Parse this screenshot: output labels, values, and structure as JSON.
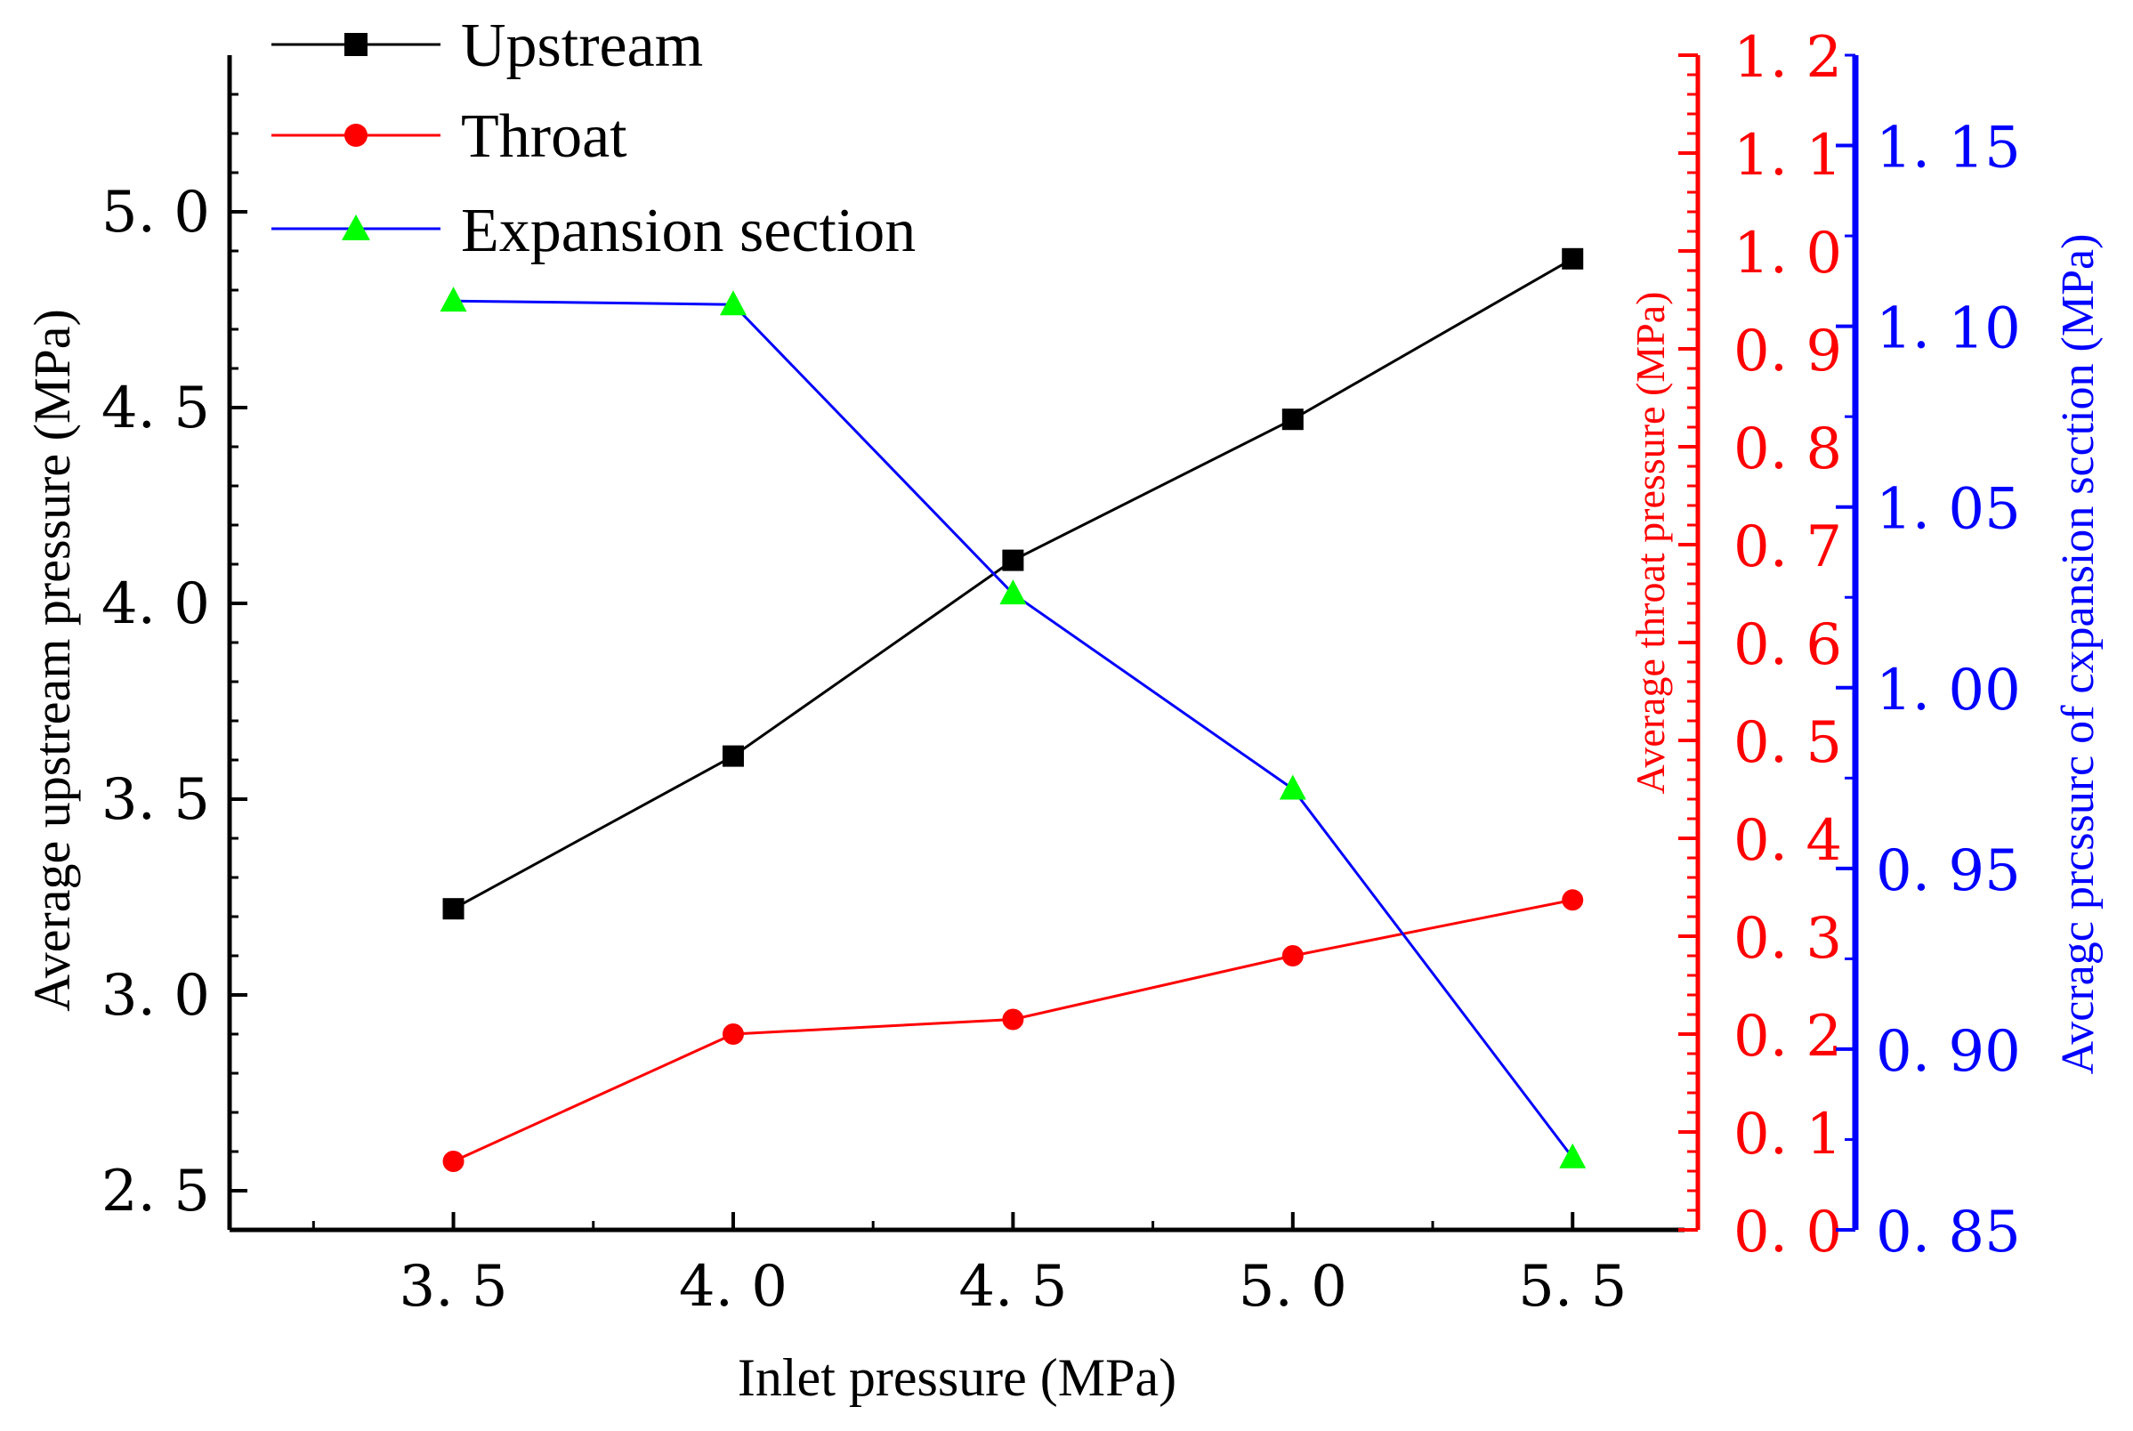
{
  "chart_data": {
    "type": "line",
    "title": "",
    "x": [
      3.5,
      4.0,
      4.5,
      5.0,
      5.5
    ],
    "xlabel": "Inlet pressure (MPa)",
    "xlim": [
      3.1,
      5.7
    ],
    "xticks": [
      "3. 5",
      "4. 0",
      "4. 5",
      "5. 0",
      "5. 5"
    ],
    "xtick_values": [
      3.5,
      4.0,
      4.5,
      5.0,
      5.5
    ],
    "axes": {
      "left": {
        "label": "Average upstream pressure (MPa)",
        "color": "#000000",
        "ylim": [
          2.4,
          5.4
        ],
        "ticks": [
          "2. 5",
          "3. 0",
          "3. 5",
          "4. 0",
          "4. 5",
          "5. 0"
        ],
        "tick_values": [
          2.5,
          3.0,
          3.5,
          4.0,
          4.5,
          5.0
        ]
      },
      "right_inner": {
        "label": "Average throat pressure (MPa)",
        "color": "#ff0000",
        "ylim": [
          0.0,
          1.2
        ],
        "ticks": [
          "0. 0",
          "0. 1",
          "0. 2",
          "0. 3",
          "0. 4",
          "0. 5",
          "0. 6",
          "0. 7",
          "0. 8",
          "0. 9",
          "1. 0",
          "1. 1",
          "1. 2"
        ],
        "tick_values": [
          0.0,
          0.1,
          0.2,
          0.3,
          0.4,
          0.5,
          0.6,
          0.7,
          0.8,
          0.9,
          1.0,
          1.1,
          1.2
        ]
      },
      "right_outer": {
        "label": "Avcragc prcssurc of cxpansion scction (MPa)",
        "color": "#0000ff",
        "ylim": [
          0.85,
          1.175
        ],
        "ticks": [
          "0. 85",
          "0. 90",
          "0. 95",
          "1. 00",
          "1. 05",
          "1. 10",
          "1. 15"
        ],
        "tick_values": [
          0.85,
          0.9,
          0.95,
          1.0,
          1.05,
          1.1,
          1.15
        ]
      }
    },
    "series": [
      {
        "name": "Upstream",
        "axis": "left",
        "line_color": "#000000",
        "marker": "square",
        "marker_color": "#000000",
        "values": [
          3.22,
          3.61,
          4.11,
          4.47,
          4.88
        ]
      },
      {
        "name": "Throat",
        "axis": "right_inner",
        "line_color": "#ff0000",
        "marker": "circle",
        "marker_color": "#ff0000",
        "values": [
          0.07,
          0.2,
          0.215,
          0.28,
          0.337
        ]
      },
      {
        "name": "Expansion section",
        "axis": "right_outer",
        "line_color": "#0000ff",
        "marker": "triangle",
        "marker_color": "#00ff00",
        "values": [
          1.107,
          1.106,
          1.026,
          0.972,
          0.87
        ]
      }
    ],
    "legend": {
      "placement": "top-left"
    }
  }
}
